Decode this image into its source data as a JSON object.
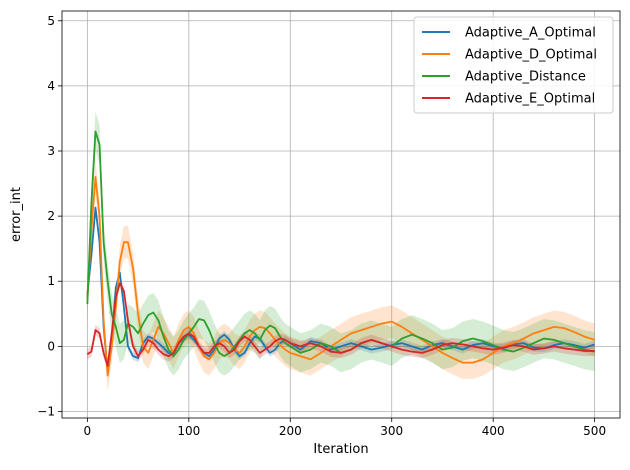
{
  "chart_data": {
    "type": "line",
    "xlabel": "Iteration",
    "ylabel": "error_int",
    "xlim": [
      -25,
      525
    ],
    "ylim": [
      -1.1,
      5.15
    ],
    "xticks": [
      0,
      100,
      200,
      300,
      400,
      500
    ],
    "yticks": [
      -1,
      0,
      1,
      2,
      3,
      4,
      5
    ],
    "grid": true,
    "legend_position": "top-right",
    "series": [
      {
        "name": "Adaptive_A_Optimal",
        "color": "#1f77b4",
        "x": [
          0,
          4,
          8,
          12,
          16,
          20,
          24,
          28,
          32,
          36,
          40,
          45,
          50,
          55,
          60,
          65,
          70,
          75,
          80,
          85,
          90,
          95,
          100,
          105,
          110,
          115,
          120,
          125,
          130,
          135,
          140,
          145,
          150,
          155,
          160,
          165,
          170,
          175,
          180,
          185,
          190,
          195,
          200,
          210,
          220,
          230,
          240,
          250,
          260,
          270,
          280,
          290,
          300,
          310,
          320,
          330,
          340,
          350,
          360,
          370,
          380,
          390,
          400,
          410,
          420,
          430,
          440,
          450,
          460,
          470,
          480,
          490,
          500
        ],
        "y": [
          0.8,
          1.4,
          2.13,
          1.6,
          0.3,
          -0.4,
          0.1,
          0.9,
          1.13,
          0.6,
          0.0,
          -0.15,
          -0.18,
          0.05,
          0.15,
          0.12,
          0.05,
          -0.02,
          -0.1,
          -0.12,
          0.05,
          0.12,
          0.18,
          0.1,
          0.0,
          -0.1,
          -0.15,
          -0.05,
          0.12,
          0.18,
          0.1,
          -0.05,
          -0.15,
          -0.1,
          0.05,
          0.15,
          0.12,
          0.0,
          -0.1,
          -0.05,
          0.05,
          0.1,
          0.05,
          -0.05,
          0.08,
          0.05,
          -0.05,
          0.0,
          0.05,
          0.0,
          -0.05,
          -0.02,
          0.02,
          0.05,
          0.0,
          -0.05,
          0.02,
          0.05,
          0.0,
          -0.05,
          0.02,
          0.05,
          0.0,
          -0.03,
          0.03,
          0.05,
          -0.02,
          -0.03,
          0.02,
          0.05,
          0.02,
          -0.02,
          0.03
        ],
        "band": 0.06
      },
      {
        "name": "Adaptive_D_Optimal",
        "color": "#ff7f0e",
        "x": [
          0,
          4,
          8,
          12,
          16,
          20,
          24,
          28,
          32,
          36,
          40,
          45,
          50,
          55,
          60,
          65,
          70,
          75,
          80,
          85,
          90,
          95,
          100,
          105,
          110,
          115,
          120,
          125,
          130,
          135,
          140,
          145,
          150,
          155,
          160,
          165,
          170,
          175,
          180,
          185,
          190,
          195,
          200,
          210,
          220,
          230,
          240,
          250,
          260,
          270,
          280,
          290,
          300,
          310,
          320,
          330,
          340,
          350,
          360,
          370,
          380,
          390,
          400,
          410,
          420,
          430,
          440,
          450,
          460,
          470,
          480,
          490,
          500
        ],
        "y": [
          0.75,
          1.8,
          2.6,
          2.0,
          0.4,
          -0.45,
          0.0,
          0.6,
          1.3,
          1.6,
          1.6,
          1.2,
          0.5,
          0.0,
          -0.1,
          0.1,
          0.3,
          0.2,
          0.05,
          -0.1,
          0.1,
          0.25,
          0.3,
          0.2,
          0.0,
          -0.15,
          -0.2,
          -0.1,
          0.05,
          0.1,
          0.05,
          -0.05,
          -0.1,
          0.0,
          0.15,
          0.25,
          0.3,
          0.28,
          0.2,
          0.1,
          0.02,
          -0.05,
          -0.1,
          -0.15,
          -0.2,
          -0.1,
          0.0,
          0.1,
          0.2,
          0.25,
          0.3,
          0.35,
          0.38,
          0.3,
          0.2,
          0.1,
          0.0,
          -0.1,
          -0.18,
          -0.25,
          -0.25,
          -0.2,
          -0.1,
          0.0,
          0.05,
          0.12,
          0.2,
          0.25,
          0.3,
          0.28,
          0.22,
          0.15,
          0.1
        ],
        "band": 0.25
      },
      {
        "name": "Adaptive_Distance",
        "color": "#2ca02c",
        "x": [
          0,
          4,
          8,
          12,
          16,
          20,
          24,
          28,
          32,
          36,
          40,
          45,
          50,
          55,
          60,
          65,
          70,
          75,
          80,
          85,
          90,
          95,
          100,
          105,
          110,
          115,
          120,
          125,
          130,
          135,
          140,
          145,
          150,
          155,
          160,
          165,
          170,
          175,
          180,
          185,
          190,
          195,
          200,
          210,
          220,
          230,
          240,
          250,
          260,
          270,
          280,
          290,
          300,
          310,
          320,
          330,
          340,
          350,
          360,
          370,
          380,
          390,
          400,
          410,
          420,
          430,
          440,
          450,
          460,
          470,
          480,
          490,
          500
        ],
        "y": [
          0.65,
          2.2,
          3.3,
          3.1,
          1.6,
          1.0,
          0.5,
          0.3,
          0.05,
          0.1,
          0.35,
          0.3,
          0.2,
          0.35,
          0.48,
          0.52,
          0.4,
          0.15,
          -0.05,
          -0.15,
          -0.05,
          0.1,
          0.2,
          0.3,
          0.42,
          0.4,
          0.25,
          0.05,
          -0.1,
          -0.15,
          -0.1,
          0.0,
          0.1,
          0.2,
          0.25,
          0.2,
          0.1,
          0.25,
          0.32,
          0.28,
          0.15,
          0.05,
          0.0,
          -0.1,
          -0.05,
          0.05,
          0.0,
          -0.1,
          -0.05,
          0.05,
          0.1,
          0.05,
          0.0,
          0.12,
          0.18,
          0.12,
          0.05,
          -0.05,
          -0.02,
          0.08,
          0.12,
          0.08,
          0.02,
          -0.05,
          -0.08,
          -0.02,
          0.05,
          0.12,
          0.1,
          0.05,
          0.0,
          -0.05,
          -0.08
        ],
        "band": 0.3
      },
      {
        "name": "Adaptive_E_Optimal",
        "color": "#d62728",
        "x": [
          0,
          4,
          8,
          12,
          16,
          20,
          24,
          28,
          32,
          36,
          40,
          45,
          50,
          55,
          60,
          65,
          70,
          75,
          80,
          85,
          90,
          95,
          100,
          105,
          110,
          115,
          120,
          125,
          130,
          135,
          140,
          145,
          150,
          155,
          160,
          165,
          170,
          175,
          180,
          185,
          190,
          195,
          200,
          210,
          220,
          230,
          240,
          250,
          260,
          270,
          280,
          290,
          300,
          310,
          320,
          330,
          340,
          350,
          360,
          370,
          380,
          390,
          400,
          410,
          420,
          430,
          440,
          450,
          460,
          470,
          480,
          490,
          500
        ],
        "y": [
          -0.12,
          -0.08,
          0.25,
          0.2,
          -0.1,
          -0.3,
          0.2,
          0.75,
          0.97,
          0.85,
          0.4,
          0.0,
          -0.15,
          -0.05,
          0.1,
          0.05,
          -0.05,
          -0.12,
          -0.15,
          -0.1,
          0.05,
          0.15,
          0.2,
          0.15,
          0.0,
          -0.1,
          -0.1,
          0.0,
          0.05,
          0.0,
          -0.1,
          -0.05,
          0.08,
          0.15,
          0.1,
          0.0,
          -0.1,
          -0.05,
          0.0,
          0.08,
          0.12,
          0.1,
          0.05,
          0.0,
          0.05,
          0.0,
          -0.08,
          -0.1,
          -0.05,
          0.05,
          0.1,
          0.05,
          0.0,
          -0.05,
          -0.08,
          -0.1,
          -0.05,
          0.02,
          0.05,
          0.03,
          0.0,
          -0.03,
          -0.05,
          -0.02,
          0.02,
          0.0,
          -0.05,
          -0.03,
          0.0,
          -0.03,
          -0.05,
          -0.07,
          -0.07
        ],
        "band": 0.08
      }
    ]
  }
}
